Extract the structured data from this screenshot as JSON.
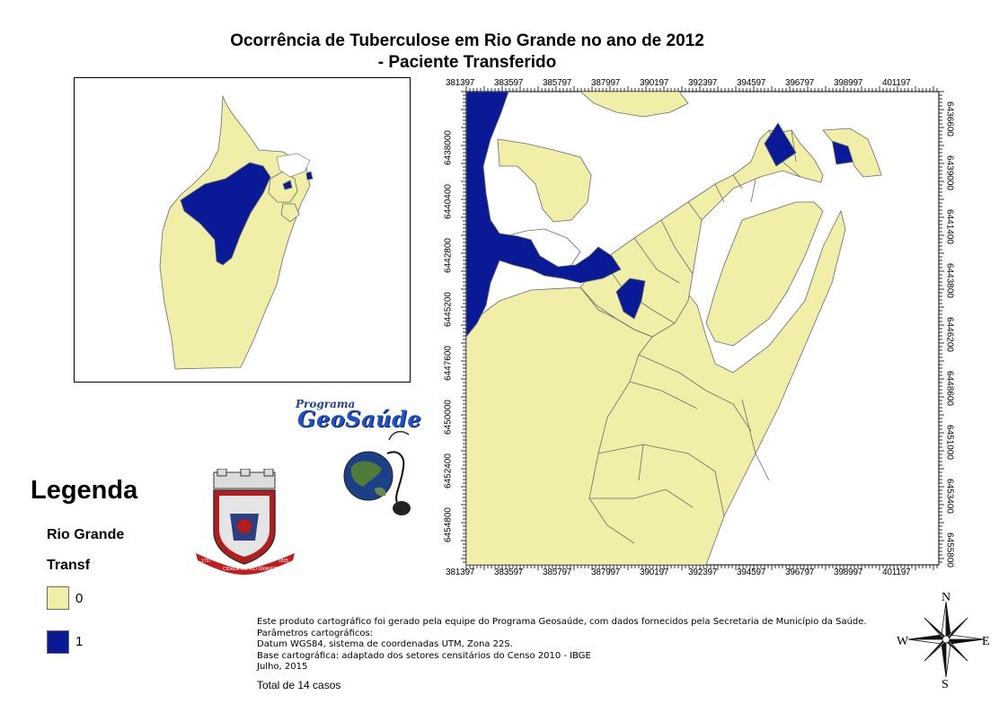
{
  "title_line1": "Ocorrência de Tuberculose em Rio Grande no ano de 2012",
  "title_line2": "- Paciente Transferido",
  "grid": {
    "x_ticks": [
      "381397",
      "383597",
      "385797",
      "387997",
      "390197",
      "392397",
      "394597",
      "396797",
      "398997",
      "401197"
    ],
    "y_ticks": [
      "6438000",
      "6440400",
      "6442800",
      "6445200",
      "6447600",
      "6450000",
      "6452400",
      "6454800"
    ],
    "y_ticks_right": [
      "6436600",
      "6439000",
      "6441400",
      "6443800",
      "6446200",
      "6448600",
      "6451000",
      "6453400",
      "6455800"
    ]
  },
  "legend": {
    "title": "Legenda",
    "layer": "Rio Grande",
    "field": "Transf",
    "classes": [
      {
        "label": "0",
        "color": "#f1eea8"
      },
      {
        "label": "1",
        "color": "#0a1a96"
      }
    ]
  },
  "colors": {
    "fill0": "#f1eea8",
    "fill1": "#0a1a96",
    "outline": "#6b6b6b",
    "water": "#ffffff"
  },
  "logo": {
    "program": "Programa",
    "name": "GeoSaúde"
  },
  "coat": {
    "left_year": "1737",
    "ribbon": "CIDADE DO RIO GRANDE",
    "right_year": "1835"
  },
  "notes": [
    "Este produto cartográfico foi gerado pela equipe do Programa Geosaúde, com dados fornecidos pela Secretaria de Município da Saúde.",
    "Parâmetros cartográficos:",
    "Datum WGS84, sistema de coordenadas UTM, Zona 22S.",
    "Base cartográfica: adaptado dos setores censitários do Censo 2010 - IBGE",
    "Julho, 2015"
  ],
  "total": "Total de 14 casos",
  "compass": {
    "n": "N",
    "s": "S",
    "e": "E",
    "w": "W"
  }
}
